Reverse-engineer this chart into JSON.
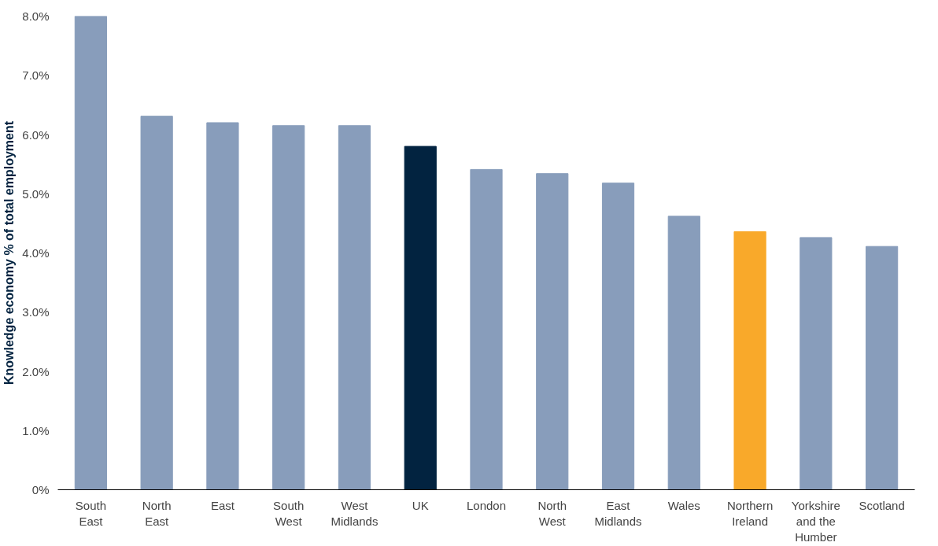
{
  "chart_data": {
    "type": "bar",
    "ylabel": "Knowledge economy % of total employment",
    "categories": [
      "South East",
      "North East",
      "East",
      "South West",
      "West Midlands",
      "UK",
      "London",
      "North West",
      "East Midlands",
      "Wales",
      "Northern Ireland",
      "Yorkshire and the Humber",
      "Scotland"
    ],
    "values": [
      8.0,
      6.31,
      6.2,
      6.15,
      6.15,
      5.8,
      5.41,
      5.34,
      5.18,
      4.62,
      4.36,
      4.26,
      4.11
    ],
    "colors": [
      "#889dbb",
      "#889dbb",
      "#889dbb",
      "#889dbb",
      "#889dbb",
      "#022340",
      "#889dbb",
      "#889dbb",
      "#889dbb",
      "#889dbb",
      "#f9a92a",
      "#889dbb",
      "#889dbb"
    ],
    "ylim": [
      0,
      8.0
    ],
    "yticks": [
      {
        "value": 0,
        "label": "0%"
      },
      {
        "value": 1,
        "label": "1.0%"
      },
      {
        "value": 2,
        "label": "2.0%"
      },
      {
        "value": 3,
        "label": "3.0%"
      },
      {
        "value": 4,
        "label": "4.0%"
      },
      {
        "value": 5,
        "label": "5.0%"
      },
      {
        "value": 6,
        "label": "6.0%"
      },
      {
        "value": 7,
        "label": "7.0%"
      },
      {
        "value": 8,
        "label": "8.0%"
      }
    ],
    "grid": false
  }
}
